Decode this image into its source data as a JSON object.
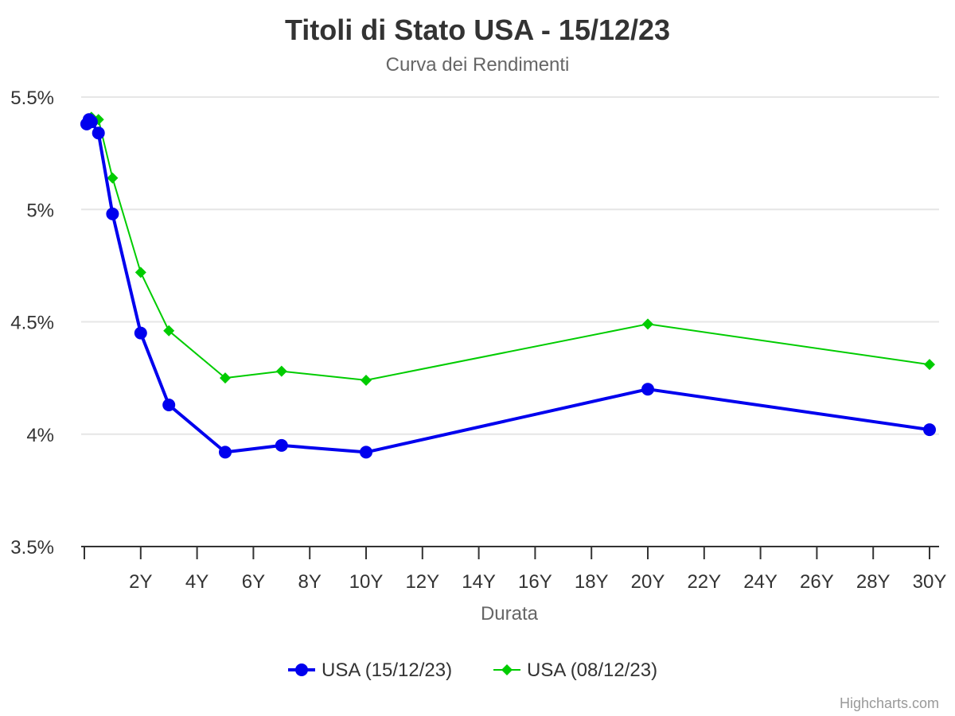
{
  "chart_data": {
    "type": "line",
    "title": "Titoli di Stato USA - 15/12/23",
    "subtitle": "Curva dei Rendimenti",
    "xlabel": "Durata",
    "ylabel": "",
    "x_unit": "years",
    "xlim": [
      0,
      30
    ],
    "ylim": [
      3.5,
      5.5
    ],
    "x_ticks": [
      {
        "value": 2,
        "label": "2Y"
      },
      {
        "value": 4,
        "label": "4Y"
      },
      {
        "value": 6,
        "label": "6Y"
      },
      {
        "value": 8,
        "label": "8Y"
      },
      {
        "value": 10,
        "label": "10Y"
      },
      {
        "value": 12,
        "label": "12Y"
      },
      {
        "value": 14,
        "label": "14Y"
      },
      {
        "value": 16,
        "label": "16Y"
      },
      {
        "value": 18,
        "label": "18Y"
      },
      {
        "value": 20,
        "label": "20Y"
      },
      {
        "value": 22,
        "label": "22Y"
      },
      {
        "value": 24,
        "label": "24Y"
      },
      {
        "value": 26,
        "label": "26Y"
      },
      {
        "value": 28,
        "label": "28Y"
      },
      {
        "value": 30,
        "label": "30Y"
      }
    ],
    "y_ticks": [
      {
        "value": 5.5,
        "label": "5.5%"
      },
      {
        "value": 5.0,
        "label": "5%"
      },
      {
        "value": 4.5,
        "label": "4.5%"
      },
      {
        "value": 4.0,
        "label": "4%"
      },
      {
        "value": 3.5,
        "label": "3.5%"
      }
    ],
    "grid": true,
    "legend_position": "bottom-center",
    "series": [
      {
        "name": "USA (15/12/23)",
        "color": "#0000ee",
        "marker": "circle",
        "x": [
          0.083,
          0.167,
          0.25,
          0.5,
          1,
          2,
          3,
          5,
          7,
          10,
          20,
          30
        ],
        "values": [
          5.38,
          5.4,
          5.39,
          5.34,
          4.98,
          4.45,
          4.13,
          3.92,
          3.95,
          3.92,
          4.2,
          4.02
        ]
      },
      {
        "name": "USA (08/12/23)",
        "color": "#00cc00",
        "marker": "diamond",
        "x": [
          0.083,
          0.167,
          0.25,
          0.5,
          1,
          2,
          3,
          5,
          7,
          10,
          20,
          30
        ],
        "values": [
          5.39,
          5.4,
          5.41,
          5.4,
          5.14,
          4.72,
          4.46,
          4.25,
          4.28,
          4.24,
          4.49,
          4.31
        ]
      }
    ],
    "credits": "Highcharts.com"
  }
}
